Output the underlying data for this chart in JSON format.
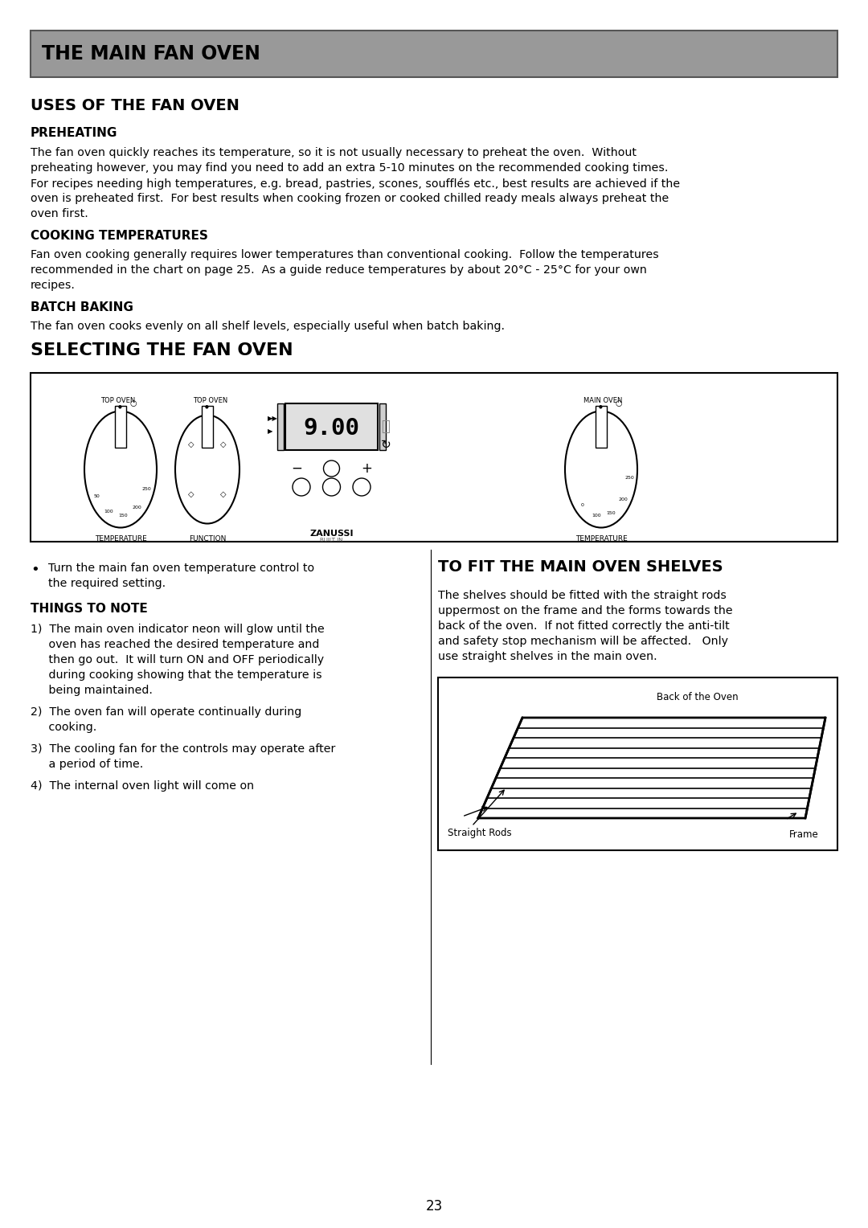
{
  "page_bg": "#ffffff",
  "header_bg": "#999999",
  "header_text": "THE MAIN FAN OVEN",
  "header_text_color": "#000000",
  "section1_title": "USES OF THE FAN OVEN",
  "sub1_title": "PREHEATING",
  "sub2_title": "COOKING TEMPERATURES",
  "sub3_title": "BATCH BAKING",
  "section2_title": "SELECTING THE FAN OVEN",
  "things_note_title": "THINGS TO NOTE",
  "fit_title": "TO FIT THE MAIN OVEN SHELVES",
  "page_number": "23",
  "preheat_lines": [
    "The fan oven quickly reaches its temperature, so it is not usually necessary to preheat the oven.  Without",
    "preheating however, you may find you need to add an extra 5-10 minutes on the recommended cooking times.",
    "For recipes needing high temperatures, e.g. bread, pastries, scones, soufflés etc., best results are achieved if the",
    "oven is preheated first.  For best results when cooking frozen or cooked chilled ready meals always preheat the",
    "oven first."
  ],
  "cook_lines": [
    "Fan oven cooking generally requires lower temperatures than conventional cooking.  Follow the temperatures",
    "recommended in the chart on page 25.  As a guide reduce temperatures by about 20°C - 25°C for your own",
    "recipes."
  ],
  "batch_line": "The fan oven cooks evenly on all shelf levels, especially useful when batch baking.",
  "bullet1_lines": [
    "Turn the main fan oven temperature control to",
    "the required setting."
  ],
  "note1_lines": [
    "1)  The main oven indicator neon will glow until the",
    "     oven has reached the desired temperature and",
    "     then go out.  It will turn ON and OFF periodically",
    "     during cooking showing that the temperature is",
    "     being maintained."
  ],
  "note2_lines": [
    "2)  The oven fan will operate continually during",
    "     cooking."
  ],
  "note3_lines": [
    "3)  The cooling fan for the controls may operate after",
    "     a period of time."
  ],
  "note4_line": "4)  The internal oven light will come on",
  "fit_lines": [
    "The shelves should be fitted with the straight rods",
    "uppermost on the frame and the forms towards the",
    "back of the oven.  If not fitted correctly the anti-tilt",
    "and safety stop mechanism will be affected.   Only",
    "use straight shelves in the main oven."
  ]
}
